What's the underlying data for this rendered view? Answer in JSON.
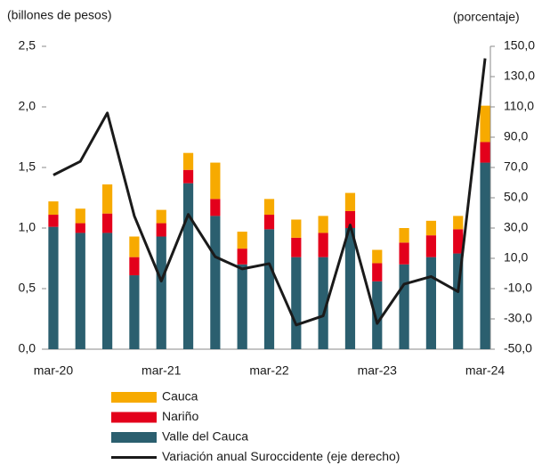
{
  "chart_data": {
    "type": "bar",
    "y_label": "(billones de pesos)",
    "y2_label": "(porcentaje)",
    "categories": [
      "mar-20",
      null,
      null,
      null,
      "mar-21",
      null,
      null,
      null,
      "mar-22",
      null,
      null,
      null,
      "mar-23",
      null,
      null,
      null,
      "mar-24"
    ],
    "ylim": [
      0,
      2.5
    ],
    "yticks": [
      {
        "value": 0,
        "label": "0,0"
      },
      {
        "value": 0.5,
        "label": "0,5"
      },
      {
        "value": 1,
        "label": "1,0"
      },
      {
        "value": 1.5,
        "label": "1,5"
      },
      {
        "value": 2,
        "label": "2,0"
      },
      {
        "value": 2.5,
        "label": "2,5"
      }
    ],
    "y2lim": [
      -50,
      150
    ],
    "y2ticks": [
      {
        "value": -50,
        "label": "-50,0"
      },
      {
        "value": -30,
        "label": "-30,0"
      },
      {
        "value": -10,
        "label": "-10,0"
      },
      {
        "value": 10,
        "label": "10,0"
      },
      {
        "value": 30,
        "label": "30,0"
      },
      {
        "value": 50,
        "label": "50,0"
      },
      {
        "value": 70,
        "label": "70,0"
      },
      {
        "value": 90,
        "label": "90,0"
      },
      {
        "value": 110,
        "label": "110,0"
      },
      {
        "value": 130,
        "label": "130,0"
      },
      {
        "value": 150,
        "label": "150,0"
      }
    ],
    "stacked": true,
    "series": [
      {
        "name": "Cauca",
        "color": "#F7AA00",
        "values": [
          0.11,
          0.12,
          0.24,
          0.17,
          0.11,
          0.14,
          0.3,
          0.14,
          0.13,
          0.15,
          0.14,
          0.15,
          0.11,
          0.12,
          0.12,
          0.11,
          0.3
        ]
      },
      {
        "name": "Nariño",
        "color": "#E3001B",
        "values": [
          0.1,
          0.08,
          0.16,
          0.15,
          0.11,
          0.11,
          0.14,
          0.13,
          0.12,
          0.16,
          0.2,
          0.14,
          0.15,
          0.18,
          0.18,
          0.2,
          0.17
        ]
      },
      {
        "name": "Valle del Cauca",
        "color": "#2B5F6F",
        "values": [
          1.01,
          0.96,
          0.96,
          0.61,
          0.93,
          1.37,
          1.1,
          0.7,
          0.99,
          0.76,
          0.76,
          1.0,
          0.56,
          0.7,
          0.76,
          0.79,
          1.54
        ]
      },
      {
        "name": "Variación anual Suroccidente (eje derecho)",
        "color": "#1a1a1a",
        "type": "line",
        "axis": "y2",
        "values": [
          65,
          74,
          106,
          38,
          -5,
          39,
          11,
          3,
          6.5,
          -34,
          -28,
          32,
          -33,
          -7,
          -2,
          -12,
          142
        ]
      }
    ]
  }
}
